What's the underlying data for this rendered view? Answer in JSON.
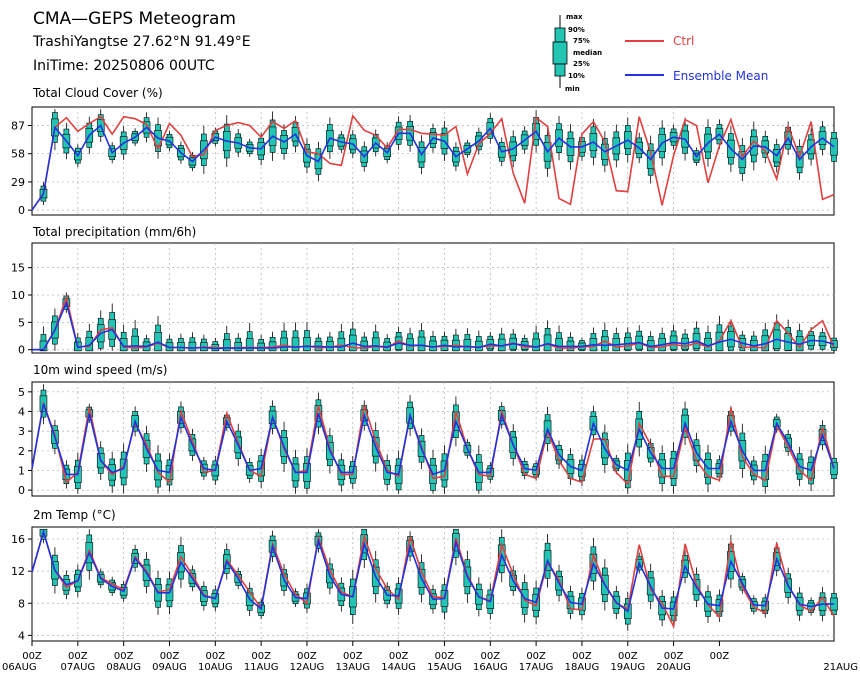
{
  "header": {
    "title": "CMA—GEPS Meteogram",
    "station": "TrashiYangtse 27.62°N 91.49°E",
    "init_time": "IniTime: 20250806 00UTC"
  },
  "legend": {
    "box_labels": [
      "max",
      "90%",
      "75%",
      "median",
      "25%",
      "10%",
      "min"
    ],
    "ctrl_label": "Ctrl",
    "mean_label": "Ensemble Mean",
    "colors": {
      "ctrl": "#e04040",
      "mean": "#2233dd",
      "box": "#22c4b4",
      "whisker": "#000000"
    }
  },
  "x_axis": {
    "tick_labels": [
      {
        "hour": "00Z",
        "date": "06AUG"
      },
      {
        "hour": "00Z",
        "date": "07AUG"
      },
      {
        "hour": "00Z",
        "date": "08AUG"
      },
      {
        "hour": "00Z",
        "date": "09AUG"
      },
      {
        "hour": "00Z",
        "date": "10AUG"
      },
      {
        "hour": "00Z",
        "date": "11AUG"
      },
      {
        "hour": "00Z",
        "date": "12AUG"
      },
      {
        "hour": "00Z",
        "date": "13AUG"
      },
      {
        "hour": "00Z",
        "date": "14AUG"
      },
      {
        "hour": "00Z",
        "date": "15AUG"
      },
      {
        "hour": "00Z",
        "date": "16AUG"
      },
      {
        "hour": "00Z",
        "date": "17AUG"
      },
      {
        "hour": "00Z",
        "date": "18AUG"
      },
      {
        "hour": "00Z",
        "date": "19AUG"
      },
      {
        "hour": "00Z",
        "date": "20AUG"
      },
      {
        "hour": "00Z",
        "date": "21AUG"
      }
    ]
  },
  "chart_data": [
    {
      "type": "line",
      "title": "Total Cloud Cover (%)",
      "x_step": "6h",
      "ylim": [
        -5,
        106
      ],
      "yticks": [
        0,
        29,
        58,
        87
      ],
      "grid": true,
      "series": [
        {
          "name": "Ctrl",
          "values": [
            0,
            17,
            85,
            95,
            81,
            89,
            96,
            78,
            96,
            94,
            88,
            63,
            89,
            77,
            55,
            57,
            82,
            87,
            90,
            87,
            75,
            91,
            84,
            92,
            60,
            58,
            48,
            46,
            97,
            82,
            77,
            64,
            83,
            83,
            79,
            78,
            77,
            86,
            37,
            68,
            79,
            94,
            38,
            7,
            95,
            86,
            12,
            6,
            78,
            91,
            70,
            20,
            19,
            96,
            59,
            5,
            56,
            93,
            87,
            28,
            66,
            93,
            55,
            71,
            61,
            32,
            86,
            55,
            91,
            11,
            16
          ]
        },
        {
          "name": "Ensemble Mean",
          "values": [
            0,
            17,
            85,
            71,
            56,
            77,
            87,
            59,
            69,
            75,
            85,
            74,
            71,
            59,
            50,
            62,
            75,
            71,
            69,
            64,
            63,
            76,
            70,
            78,
            56,
            50,
            74,
            70,
            68,
            55,
            69,
            59,
            79,
            79,
            57,
            74,
            71,
            55,
            63,
            71,
            84,
            60,
            63,
            72,
            81,
            60,
            74,
            65,
            65,
            70,
            60,
            66,
            72,
            64,
            52,
            69,
            75,
            73,
            55,
            69,
            78,
            63,
            52,
            66,
            65,
            56,
            74,
            52,
            65,
            74,
            65
          ]
        }
      ]
    },
    {
      "type": "line",
      "title": "Total precipitation (mm/6h)",
      "x_step": "6h",
      "ylim": [
        -0.6,
        19.5
      ],
      "yticks": [
        0,
        5,
        10,
        15
      ],
      "grid": true,
      "series": [
        {
          "name": "Ctrl",
          "values": [
            0,
            0,
            3.6,
            9.6,
            0.5,
            0.6,
            3.6,
            4.0,
            0.5,
            0.3,
            0.5,
            1.2,
            0.4,
            0.4,
            0.3,
            0.5,
            0.4,
            0.3,
            0.4,
            0.4,
            0.4,
            0.5,
            0.8,
            0.4,
            0.7,
            0.3,
            0.5,
            0.8,
            0.4,
            0.3,
            0.6,
            0.4,
            1.6,
            0.7,
            0.8,
            0.5,
            0.6,
            0.8,
            0.5,
            0.5,
            0.7,
            0.7,
            1.2,
            0.5,
            0.5,
            1.0,
            0.3,
            0.3,
            0.5,
            0.6,
            1.6,
            0.5,
            0.7,
            1.2,
            0.4,
            0.5,
            1.0,
            0.6,
            1.2,
            0.5,
            1.6,
            5.3,
            0.4,
            0.5,
            0.3,
            5.3,
            3.0,
            0.4,
            3.7,
            5.3,
            0.5
          ]
        },
        {
          "name": "Ensemble Mean",
          "values": [
            0,
            0,
            3.6,
            8.6,
            0.4,
            0.8,
            3.0,
            3.7,
            0.6,
            0.7,
            0.6,
            1.4,
            0.4,
            0.4,
            0.3,
            0.4,
            0.2,
            0.3,
            0.3,
            0.3,
            0.3,
            0.3,
            0.5,
            0.5,
            0.6,
            0.6,
            0.5,
            0.5,
            1.2,
            0.6,
            0.7,
            0.5,
            1.2,
            0.8,
            0.8,
            0.5,
            0.8,
            0.5,
            0.6,
            0.4,
            1.0,
            0.7,
            1.1,
            0.8,
            0.5,
            1.1,
            0.6,
            0.6,
            0.6,
            0.9,
            0.8,
            0.9,
            1.1,
            1.3,
            0.6,
            0.9,
            1.3,
            1.1,
            1.6,
            0.7,
            1.4,
            1.9,
            1.2,
            0.7,
            1.1,
            1.9,
            1.4,
            1.0,
            1.7,
            1.6,
            1.0
          ]
        }
      ]
    },
    {
      "type": "line",
      "title": "10m wind speed (m/s)",
      "x_step": "6h",
      "ylim": [
        -0.3,
        5.5
      ],
      "yticks": [
        0,
        1,
        2,
        3,
        4,
        5
      ],
      "grid": true,
      "series": [
        {
          "name": "Ctrl",
          "values": [
            1.1,
            4.4,
            2.8,
            0.4,
            0.9,
            4.2,
            1.5,
            0.8,
            1.2,
            3.4,
            2.3,
            0.9,
            0.4,
            4.0,
            2.5,
            0.9,
            1.0,
            3.9,
            2.4,
            1.0,
            0.7,
            3.7,
            2.1,
            0.9,
            1.0,
            4.3,
            2.1,
            0.8,
            0.8,
            4.3,
            2.5,
            1.0,
            0.7,
            3.8,
            2.2,
            0.6,
            0.7,
            4.0,
            2.1,
            0.8,
            0.7,
            4.0,
            2.3,
            0.8,
            0.6,
            3.0,
            1.5,
            0.6,
            0.4,
            2.6,
            2.6,
            0.9,
            0.3,
            3.4,
            2.3,
            0.7,
            0.7,
            3.2,
            1.5,
            0.7,
            0.5,
            4.2,
            1.7,
            0.8,
            0.5,
            3.3,
            2.2,
            1.0,
            0.5,
            3.2,
            1.1
          ]
        },
        {
          "name": "Ensemble Mean",
          "values": [
            1.1,
            4.4,
            2.7,
            0.8,
            0.8,
            3.9,
            1.5,
            0.9,
            1.1,
            3.5,
            2.1,
            1.0,
            0.9,
            3.7,
            2.3,
            1.1,
            1.0,
            3.5,
            2.3,
            1.0,
            1.1,
            3.7,
            2.2,
            0.9,
            0.9,
            3.9,
            2.0,
            0.9,
            0.9,
            3.8,
            2.2,
            0.9,
            0.8,
            3.8,
            2.1,
            0.8,
            1.0,
            3.5,
            2.1,
            0.9,
            0.9,
            3.8,
            2.3,
            1.1,
            1.0,
            3.1,
            1.8,
            1.2,
            1.0,
            3.4,
            2.1,
            1.3,
            1.0,
            3.1,
            1.9,
            1.1,
            1.1,
            3.4,
            1.9,
            1.1,
            1.1,
            3.5,
            2.0,
            1.0,
            1.0,
            3.4,
            2.4,
            1.2,
            1.0,
            2.8,
            1.1
          ]
        }
      ]
    },
    {
      "type": "line",
      "title": "2m Temp (°C)",
      "x_step": "6h",
      "ylim": [
        3.3,
        17.5
      ],
      "yticks": [
        4,
        8,
        12,
        16
      ],
      "grid": true,
      "series": [
        {
          "name": "Ctrl",
          "values": [
            11.9,
            16.9,
            12.1,
            10.0,
            10.8,
            14.6,
            11.2,
            10.4,
            9.7,
            13.8,
            12.0,
            9.4,
            9.7,
            13.8,
            11.5,
            9.0,
            8.6,
            13.4,
            11.5,
            9.4,
            7.4,
            15.4,
            11.6,
            9.1,
            8.0,
            16.2,
            12.1,
            9.4,
            8.8,
            16.3,
            12.3,
            9.8,
            8.5,
            16.3,
            11.9,
            8.8,
            8.7,
            16.1,
            11.5,
            8.8,
            8.3,
            15.3,
            11.6,
            8.4,
            7.7,
            13.1,
            10.9,
            7.3,
            7.2,
            14.0,
            10.3,
            8.0,
            7.3,
            15.3,
            9.7,
            8.0,
            5.1,
            15.4,
            10.3,
            7.8,
            6.3,
            15.7,
            10.0,
            7.5,
            6.8,
            15.5,
            10.2,
            7.8,
            7.0,
            8.7,
            6.4
          ]
        },
        {
          "name": "Ensemble Mean",
          "values": [
            11.9,
            16.9,
            12.1,
            10.3,
            10.8,
            14.3,
            11.1,
            10.1,
            9.5,
            13.6,
            11.8,
            9.3,
            9.3,
            13.1,
            11.1,
            8.9,
            8.6,
            13.2,
            11.1,
            8.5,
            7.3,
            15.1,
            10.9,
            8.7,
            8.6,
            15.8,
            11.4,
            9.1,
            8.8,
            15.4,
            11.3,
            9.0,
            8.9,
            15.1,
            11.1,
            8.5,
            8.6,
            15.6,
            11.3,
            8.8,
            8.2,
            14.0,
            10.8,
            8.6,
            8.1,
            13.3,
            10.5,
            8.1,
            7.9,
            12.9,
            10.3,
            8.1,
            7.0,
            13.0,
            10.1,
            7.4,
            7.3,
            12.6,
            10.0,
            7.9,
            7.7,
            13.2,
            10.5,
            7.8,
            7.7,
            13.5,
            10.2,
            7.9,
            7.6,
            7.9,
            7.9
          ]
        }
      ]
    }
  ]
}
